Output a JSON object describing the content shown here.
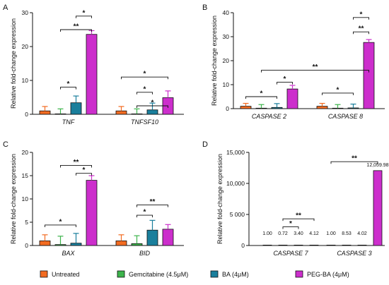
{
  "legend": [
    {
      "label": "Untreated",
      "color": "#f26b21"
    },
    {
      "label": "Gemcitabine (4.5μM)",
      "color": "#3cb44b"
    },
    {
      "label": "BA (4μM)",
      "color": "#1a7f9c"
    },
    {
      "label": "PEG-BA (4μM)",
      "color": "#cc2ecc"
    }
  ],
  "chart_data": [
    {
      "panel": "A",
      "type": "bar",
      "ylabel": "Relative fold-change expression",
      "ylim": [
        0,
        30
      ],
      "yticks": [
        0,
        10,
        20,
        30
      ],
      "ytick_labels": [
        "0",
        "10",
        "20",
        "30"
      ],
      "categories": [
        "TNF",
        "TNFSF10"
      ],
      "series": [
        {
          "name": "Untreated",
          "values": [
            1,
            1
          ],
          "errors": [
            1.3,
            1.3
          ]
        },
        {
          "name": "Gemcitabine (4.5μM)",
          "values": [
            0.1,
            0.1
          ],
          "errors": [
            1.5,
            1.5
          ]
        },
        {
          "name": "BA (4μM)",
          "values": [
            3.4,
            1.3
          ],
          "errors": [
            2.0,
            2.0
          ]
        },
        {
          "name": "PEG-BA (4μM)",
          "values": [
            23.6,
            4.9
          ],
          "errors": [
            1.1,
            2.0
          ]
        }
      ],
      "significance": [
        {
          "label": "*",
          "from": [
            0,
            2
          ],
          "to": [
            0,
            3
          ],
          "y": 29
        },
        {
          "label": "**",
          "from": [
            0,
            1
          ],
          "to": [
            0,
            3
          ],
          "y": 25
        },
        {
          "label": "*",
          "from": [
            0,
            1
          ],
          "to": [
            0,
            2
          ],
          "y": 8
        },
        {
          "label": "*",
          "from": [
            1,
            0
          ],
          "to": [
            1,
            3
          ],
          "y": 11
        },
        {
          "label": "*",
          "from": [
            1,
            1
          ],
          "to": [
            1,
            2
          ],
          "y": 6.5
        },
        {
          "label": "*",
          "from": [
            1,
            1
          ],
          "to": [
            1,
            3
          ],
          "y": 2.5
        }
      ],
      "data_labels": []
    },
    {
      "panel": "B",
      "type": "bar",
      "ylabel": "Relative fold-change expression",
      "ylim": [
        0,
        40
      ],
      "yticks": [
        0,
        10,
        20,
        30,
        40
      ],
      "ytick_labels": [
        "0",
        "10",
        "20",
        "30",
        "40"
      ],
      "categories": [
        "CASPASE 2",
        "CASPASE 8"
      ],
      "series": [
        {
          "name": "Untreated",
          "values": [
            1,
            1
          ],
          "errors": [
            1.2,
            1.2
          ]
        },
        {
          "name": "Gemcitabine (4.5μM)",
          "values": [
            0.2,
            0.2
          ],
          "errors": [
            1.5,
            1.5
          ]
        },
        {
          "name": "BA (4μM)",
          "values": [
            0.5,
            0.3
          ],
          "errors": [
            1.6,
            1.6
          ]
        },
        {
          "name": "PEG-BA (4μM)",
          "values": [
            8.2,
            27.6
          ],
          "errors": [
            1.5,
            1.2
          ]
        }
      ],
      "significance": [
        {
          "label": "*",
          "from": [
            0,
            0
          ],
          "to": [
            0,
            2
          ],
          "y": 5
        },
        {
          "label": "**",
          "from": [
            0,
            1
          ],
          "to": [
            1,
            3
          ],
          "y": 16
        },
        {
          "label": "*",
          "from": [
            0,
            2
          ],
          "to": [
            0,
            3
          ],
          "y": 11
        },
        {
          "label": "*",
          "from": [
            1,
            0
          ],
          "to": [
            1,
            2
          ],
          "y": 6.5
        },
        {
          "label": "*",
          "from": [
            1,
            2
          ],
          "to": [
            1,
            3
          ],
          "y": 38
        },
        {
          "label": "**",
          "from": [
            1,
            2
          ],
          "to": [
            1,
            3
          ],
          "y": 32
        }
      ],
      "data_labels": []
    },
    {
      "panel": "C",
      "type": "bar",
      "ylabel": "Relative fold-change expression",
      "ylim": [
        0,
        20
      ],
      "yticks": [
        0,
        5,
        10,
        15,
        20
      ],
      "ytick_labels": [
        "0",
        "5",
        "10",
        "15",
        "20"
      ],
      "categories": [
        "BAX",
        "BID"
      ],
      "series": [
        {
          "name": "Untreated",
          "values": [
            1,
            1
          ],
          "errors": [
            1.3,
            1.3
          ]
        },
        {
          "name": "Gemcitabine (4.5μM)",
          "values": [
            0.2,
            0.4
          ],
          "errors": [
            1.8,
            1.7
          ]
        },
        {
          "name": "BA (4μM)",
          "values": [
            0.5,
            3.3
          ],
          "errors": [
            2.1,
            2.1
          ]
        },
        {
          "name": "PEG-BA (4μM)",
          "values": [
            14.0,
            3.5
          ],
          "errors": [
            1.0,
            1.0
          ]
        }
      ],
      "significance": [
        {
          "label": "**",
          "from": [
            0,
            1
          ],
          "to": [
            0,
            3
          ],
          "y": 17.2
        },
        {
          "label": "*",
          "from": [
            0,
            2
          ],
          "to": [
            0,
            3
          ],
          "y": 15.5
        },
        {
          "label": "*",
          "from": [
            0,
            0
          ],
          "to": [
            0,
            2
          ],
          "y": 4.4
        },
        {
          "label": "**",
          "from": [
            1,
            1
          ],
          "to": [
            1,
            3
          ],
          "y": 8.7
        },
        {
          "label": "*",
          "from": [
            1,
            1
          ],
          "to": [
            1,
            2
          ],
          "y": 6.5
        }
      ],
      "data_labels": []
    },
    {
      "panel": "D",
      "type": "bar",
      "ylabel": "Relative fold-change expression",
      "ylim": [
        0,
        15000
      ],
      "yticks": [
        0,
        5000,
        10000,
        15000
      ],
      "ytick_labels": [
        "0",
        "5 000",
        "10,000",
        "15,000"
      ],
      "categories": [
        "CASPASE 7",
        "CASPASE 3"
      ],
      "series": [
        {
          "name": "Untreated",
          "values": [
            1.0,
            1.0
          ],
          "errors": [
            0,
            0
          ]
        },
        {
          "name": "Gemcitabine (4.5μM)",
          "values": [
            0.72,
            8.53
          ],
          "errors": [
            0,
            0
          ]
        },
        {
          "name": "BA (4μM)",
          "values": [
            3.4,
            4.02
          ],
          "errors": [
            0,
            0
          ]
        },
        {
          "name": "PEG-BA (4μM)",
          "values": [
            4.12,
            12059.98
          ],
          "errors": [
            0,
            0
          ]
        }
      ],
      "significance": [
        {
          "label": "**",
          "from": [
            0,
            1
          ],
          "to": [
            0,
            3
          ],
          "y": 4300
        },
        {
          "label": "*",
          "from": [
            0,
            1
          ],
          "to": [
            0,
            2
          ],
          "y": 3000
        },
        {
          "label": "**",
          "from": [
            1,
            0
          ],
          "to": [
            1,
            3
          ],
          "y": 13500
        }
      ],
      "data_labels": [
        {
          "cat": 0,
          "bar": 0,
          "text": "1.00",
          "y": 1700
        },
        {
          "cat": 0,
          "bar": 1,
          "text": "0.72",
          "y": 1700
        },
        {
          "cat": 0,
          "bar": 2,
          "text": "3.40",
          "y": 1700
        },
        {
          "cat": 0,
          "bar": 3,
          "text": "4.12",
          "y": 1700
        },
        {
          "cat": 1,
          "bar": 0,
          "text": "1.00",
          "y": 1700
        },
        {
          "cat": 1,
          "bar": 1,
          "text": "8.53",
          "y": 1700
        },
        {
          "cat": 1,
          "bar": 2,
          "text": "4.02",
          "y": 1700
        },
        {
          "cat": 1,
          "bar": 3,
          "text": "12,059.98",
          "y": 12700
        }
      ]
    }
  ]
}
